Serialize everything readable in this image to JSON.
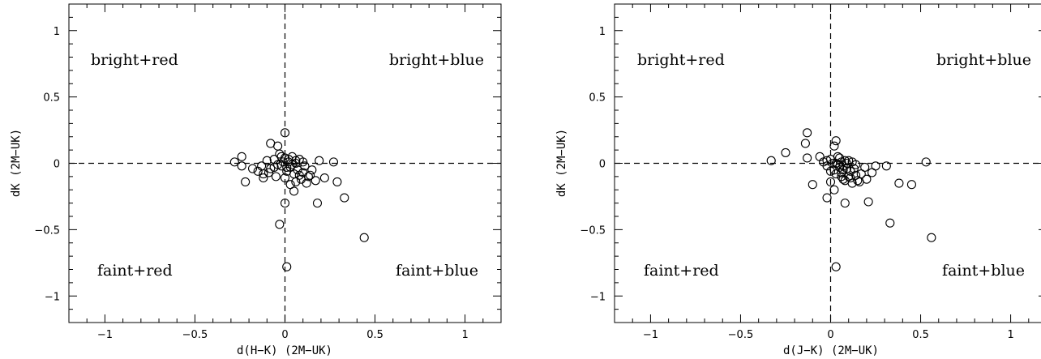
{
  "chart_data": [
    {
      "type": "scatter",
      "xlabel": "d(H−K) (2M−UK)",
      "ylabel": "dK (2M−UK)",
      "xlim": [
        -1.2,
        1.2
      ],
      "ylim": [
        -1.2,
        1.2
      ],
      "xticks": [
        {
          "v": -1,
          "label": "−1"
        },
        {
          "v": -0.5,
          "label": "−0.5"
        },
        {
          "v": 0,
          "label": "0"
        },
        {
          "v": 0.5,
          "label": "0.5"
        },
        {
          "v": 1,
          "label": "1"
        }
      ],
      "yticks": [
        {
          "v": -1,
          "label": "−1"
        },
        {
          "v": -0.5,
          "label": "−0.5"
        },
        {
          "v": 0,
          "label": "0"
        },
        {
          "v": 0.5,
          "label": "0.5"
        },
        {
          "v": 1,
          "label": "1"
        }
      ],
      "reference_lines": {
        "x": 0,
        "y": 0,
        "style": "dashed"
      },
      "quadrant_labels": {
        "top_left": "bright+red",
        "top_right": "bright+blue",
        "bottom_left": "faint+red",
        "bottom_right": "faint+blue"
      },
      "marker": "open-circle",
      "points": [
        [
          0.0,
          0.23
        ],
        [
          -0.08,
          0.15
        ],
        [
          -0.04,
          0.13
        ],
        [
          -0.24,
          0.05
        ],
        [
          -0.28,
          0.01
        ],
        [
          -0.24,
          -0.02
        ],
        [
          -0.18,
          -0.04
        ],
        [
          -0.15,
          -0.06
        ],
        [
          -0.12,
          -0.08
        ],
        [
          -0.1,
          0.02
        ],
        [
          -0.08,
          -0.04
        ],
        [
          -0.06,
          0.03
        ],
        [
          -0.05,
          -0.1
        ],
        [
          -0.03,
          0.07
        ],
        [
          -0.02,
          -0.02
        ],
        [
          0.0,
          0.04
        ],
        [
          0.01,
          -0.06
        ],
        [
          0.02,
          0.01
        ],
        [
          0.03,
          -0.03
        ],
        [
          0.04,
          0.05
        ],
        [
          0.05,
          -0.08
        ],
        [
          0.06,
          0.0
        ],
        [
          0.07,
          -0.05
        ],
        [
          0.08,
          0.03
        ],
        [
          0.09,
          -0.12
        ],
        [
          0.1,
          -0.07
        ],
        [
          0.11,
          -0.02
        ],
        [
          0.12,
          -0.15
        ],
        [
          0.13,
          -0.1
        ],
        [
          0.15,
          -0.05
        ],
        [
          0.17,
          -0.13
        ],
        [
          0.19,
          0.02
        ],
        [
          0.22,
          -0.11
        ],
        [
          0.27,
          0.01
        ],
        [
          -0.22,
          -0.14
        ],
        [
          -0.12,
          -0.11
        ],
        [
          -0.09,
          -0.07
        ],
        [
          0.0,
          -0.11
        ],
        [
          0.03,
          -0.16
        ],
        [
          0.05,
          -0.21
        ],
        [
          0.06,
          -0.14
        ],
        [
          0.18,
          -0.3
        ],
        [
          0.29,
          -0.14
        ],
        [
          0.33,
          -0.26
        ],
        [
          0.0,
          -0.3
        ],
        [
          -0.03,
          -0.46
        ],
        [
          0.44,
          -0.56
        ],
        [
          0.01,
          -0.78
        ],
        [
          -0.01,
          0.01
        ],
        [
          0.02,
          0.03
        ],
        [
          -0.04,
          -0.01
        ],
        [
          0.04,
          -0.01
        ],
        [
          0.01,
          -0.03
        ],
        [
          -0.02,
          0.05
        ],
        [
          0.06,
          0.02
        ],
        [
          -0.06,
          -0.03
        ],
        [
          0.08,
          -0.09
        ],
        [
          -0.13,
          -0.02
        ],
        [
          0.14,
          -0.09
        ],
        [
          0.1,
          0.01
        ]
      ]
    },
    {
      "type": "scatter",
      "xlabel": "d(J−K) (2M−UK)",
      "ylabel": "dK (2M−UK)",
      "xlim": [
        -1.2,
        1.2
      ],
      "ylim": [
        -1.2,
        1.2
      ],
      "xticks": [
        {
          "v": -1,
          "label": "−1"
        },
        {
          "v": -0.5,
          "label": "−0.5"
        },
        {
          "v": 0,
          "label": "0"
        },
        {
          "v": 0.5,
          "label": "0.5"
        },
        {
          "v": 1,
          "label": "1"
        }
      ],
      "yticks": [
        {
          "v": -1,
          "label": "−1"
        },
        {
          "v": -0.5,
          "label": "−0.5"
        },
        {
          "v": 0,
          "label": "0"
        },
        {
          "v": 0.5,
          "label": "0.5"
        },
        {
          "v": 1,
          "label": "1"
        }
      ],
      "reference_lines": {
        "x": 0,
        "y": 0,
        "style": "dashed"
      },
      "quadrant_labels": {
        "top_left": "bright+red",
        "top_right": "bright+blue",
        "bottom_left": "faint+red",
        "bottom_right": "faint+blue"
      },
      "marker": "open-circle",
      "points": [
        [
          -0.13,
          0.23
        ],
        [
          -0.14,
          0.15
        ],
        [
          0.03,
          0.17
        ],
        [
          0.02,
          0.13
        ],
        [
          -0.25,
          0.08
        ],
        [
          -0.33,
          0.02
        ],
        [
          -0.13,
          0.04
        ],
        [
          -0.06,
          0.05
        ],
        [
          -0.04,
          0.01
        ],
        [
          -0.02,
          -0.02
        ],
        [
          0.0,
          0.03
        ],
        [
          0.02,
          -0.05
        ],
        [
          0.03,
          0.0
        ],
        [
          0.05,
          0.04
        ],
        [
          0.06,
          -0.07
        ],
        [
          0.07,
          -0.02
        ],
        [
          0.08,
          0.02
        ],
        [
          0.09,
          -0.04
        ],
        [
          0.1,
          -0.1
        ],
        [
          0.11,
          -0.06
        ],
        [
          0.12,
          0.01
        ],
        [
          0.14,
          -0.09
        ],
        [
          0.15,
          -0.13
        ],
        [
          0.17,
          -0.08
        ],
        [
          0.19,
          -0.03
        ],
        [
          0.2,
          -0.12
        ],
        [
          0.23,
          -0.07
        ],
        [
          0.25,
          -0.02
        ],
        [
          0.31,
          -0.02
        ],
        [
          0.53,
          0.01
        ],
        [
          -0.1,
          -0.16
        ],
        [
          0.0,
          -0.14
        ],
        [
          0.02,
          -0.2
        ],
        [
          -0.02,
          -0.26
        ],
        [
          0.08,
          -0.3
        ],
        [
          0.21,
          -0.29
        ],
        [
          0.38,
          -0.15
        ],
        [
          0.45,
          -0.16
        ],
        [
          0.33,
          -0.45
        ],
        [
          0.56,
          -0.56
        ],
        [
          0.03,
          -0.78
        ],
        [
          0.04,
          -0.01
        ],
        [
          0.06,
          0.01
        ],
        [
          0.05,
          -0.03
        ],
        [
          0.07,
          -0.05
        ],
        [
          0.09,
          0.0
        ],
        [
          0.01,
          0.0
        ],
        [
          0.03,
          -0.08
        ],
        [
          0.11,
          -0.11
        ],
        [
          0.13,
          -0.04
        ],
        [
          0.16,
          -0.14
        ],
        [
          0.04,
          0.05
        ],
        [
          0.0,
          -0.06
        ],
        [
          -0.02,
          0.02
        ],
        [
          0.06,
          -0.1
        ],
        [
          0.12,
          -0.15
        ],
        [
          0.08,
          -0.13
        ],
        [
          0.1,
          0.02
        ],
        [
          0.14,
          -0.01
        ],
        [
          0.07,
          -0.12
        ]
      ]
    }
  ]
}
